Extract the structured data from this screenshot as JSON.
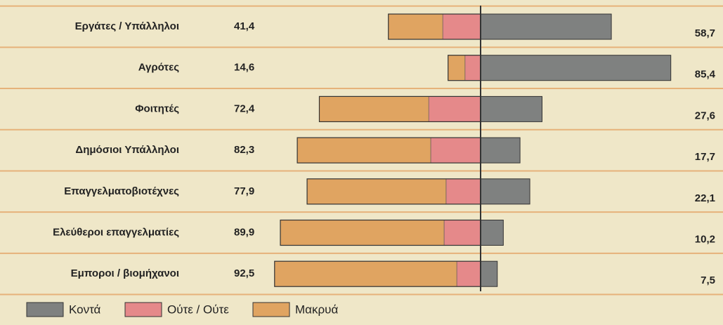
{
  "chart_data": {
    "type": "diverging-bar",
    "categories": [
      "Εργάτες / Υπάλληλοι",
      "Αγρότες",
      "Φοιτητές",
      "Δημόσιοι Υπάλληλοι",
      "Επαγγελματοβιοτέχνες",
      "Ελεύθεροι επαγγελματίες",
      "Εμποροι / βιομήχανοι"
    ],
    "series": [
      {
        "name": "Κοντά",
        "color": "#7f8180",
        "side": "right",
        "values": [
          58.7,
          85.4,
          27.6,
          17.7,
          22.1,
          10.2,
          7.5
        ],
        "value_labels": [
          "58,7",
          "85,4",
          "27,6",
          "17,7",
          "22,1",
          "10,2",
          "7,5"
        ]
      },
      {
        "name": "Ούτε / Ούτε",
        "color": "#e5898a",
        "side": "left",
        "values": [
          17.0,
          7.0,
          23.3,
          22.4,
          15.5,
          16.4,
          10.7
        ]
      },
      {
        "name": "Μακρυά",
        "color": "#e0a461",
        "side": "left",
        "values": [
          24.4,
          7.6,
          49.1,
          59.9,
          62.4,
          73.5,
          81.8
        ]
      }
    ],
    "totals": {
      "values": [
        41.4,
        14.6,
        72.4,
        82.3,
        77.9,
        89.9,
        92.5
      ],
      "value_labels": [
        "41,4",
        "14,6",
        "72,4",
        "82,3",
        "77,9",
        "89,9",
        "92,5"
      ]
    }
  }
}
